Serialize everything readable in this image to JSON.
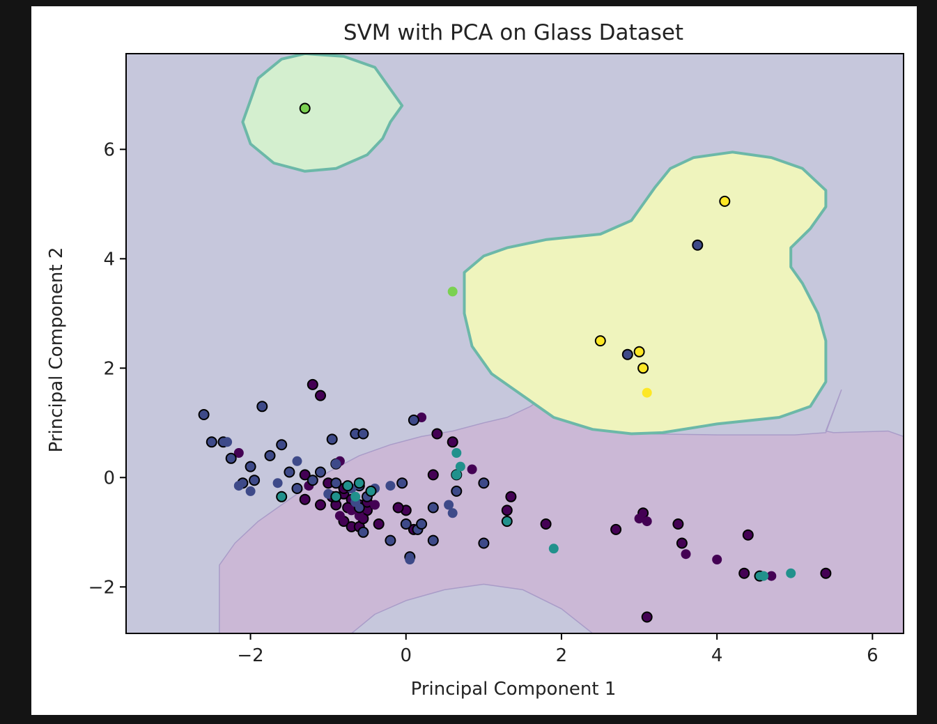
{
  "chart_data": {
    "type": "scatter",
    "title": "SVM with PCA on Glass Dataset",
    "xlabel": "Principal Component 1",
    "ylabel": "Principal Component 2",
    "xlim": [
      -3.6,
      6.4
    ],
    "ylim": [
      -2.85,
      7.75
    ],
    "xticks": [
      -2,
      0,
      2,
      4,
      6
    ],
    "yticks": [
      -2,
      0,
      2,
      4,
      6
    ],
    "grid": false,
    "legend": "none",
    "colors": {
      "class_1": "#440154",
      "class_2": "#3b528b",
      "class_3": "#3e4a89",
      "class_5": "#21918c",
      "class_6": "#7ad151",
      "class_7": "#fde725",
      "region_default": "#c6c7dc",
      "region_purple": "#cbb8d6",
      "region_green": "#d4efcf",
      "region_yellow": "#eff4bd",
      "region_edge": "#6cb8a8"
    },
    "decision_regions": [
      {
        "class": "class_2",
        "description": "background"
      },
      {
        "class": "class_1",
        "points": [
          [
            -2.4,
            -2.85
          ],
          [
            -2.4,
            -1.6
          ],
          [
            -2.2,
            -1.2
          ],
          [
            -1.9,
            -0.8
          ],
          [
            -1.6,
            -0.5
          ],
          [
            -1.3,
            -0.2
          ],
          [
            -1.0,
            0.1
          ],
          [
            -0.6,
            0.4
          ],
          [
            -0.2,
            0.6
          ],
          [
            0.2,
            0.75
          ],
          [
            0.6,
            0.85
          ],
          [
            1.0,
            1.0
          ],
          [
            1.3,
            1.1
          ],
          [
            1.6,
            1.3
          ],
          [
            1.8,
            1.5
          ],
          [
            2.0,
            1.6
          ],
          [
            2.1,
            1.5
          ],
          [
            2.0,
            1.3
          ],
          [
            1.9,
            1.1
          ],
          [
            2.2,
            0.95
          ],
          [
            3.0,
            0.8
          ],
          [
            4.0,
            0.78
          ],
          [
            5.0,
            0.78
          ],
          [
            5.4,
            0.82
          ],
          [
            5.6,
            1.6
          ],
          [
            5.4,
            0.85
          ],
          [
            5.5,
            0.82
          ],
          [
            6.2,
            0.85
          ],
          [
            6.4,
            0.75
          ],
          [
            6.4,
            -2.85
          ],
          [
            2.4,
            -2.85
          ],
          [
            2.0,
            -2.4
          ],
          [
            1.5,
            -2.05
          ],
          [
            1.0,
            -1.95
          ],
          [
            0.5,
            -2.05
          ],
          [
            0.0,
            -2.25
          ],
          [
            -0.4,
            -2.5
          ],
          [
            -0.7,
            -2.85
          ]
        ]
      },
      {
        "class": "class_6",
        "points": [
          [
            -2.0,
            6.9
          ],
          [
            -1.9,
            7.3
          ],
          [
            -1.6,
            7.65
          ],
          [
            -1.3,
            7.75
          ],
          [
            -0.8,
            7.7
          ],
          [
            -0.4,
            7.5
          ],
          [
            -0.2,
            7.1
          ],
          [
            -0.05,
            6.8
          ],
          [
            -0.2,
            6.5
          ],
          [
            -0.3,
            6.2
          ],
          [
            -0.5,
            5.9
          ],
          [
            -0.9,
            5.65
          ],
          [
            -1.3,
            5.6
          ],
          [
            -1.7,
            5.75
          ],
          [
            -2.0,
            6.1
          ],
          [
            -2.1,
            6.5
          ]
        ]
      },
      {
        "class": "class_7",
        "points": [
          [
            0.75,
            3.75
          ],
          [
            1.0,
            4.05
          ],
          [
            1.3,
            4.2
          ],
          [
            1.8,
            4.35
          ],
          [
            2.5,
            4.45
          ],
          [
            2.9,
            4.7
          ],
          [
            3.2,
            5.3
          ],
          [
            3.4,
            5.65
          ],
          [
            3.7,
            5.85
          ],
          [
            4.2,
            5.95
          ],
          [
            4.7,
            5.85
          ],
          [
            5.1,
            5.65
          ],
          [
            5.4,
            5.25
          ],
          [
            5.4,
            4.95
          ],
          [
            5.2,
            4.55
          ],
          [
            4.95,
            4.2
          ],
          [
            4.95,
            3.85
          ],
          [
            5.1,
            3.55
          ],
          [
            5.3,
            3.0
          ],
          [
            5.4,
            2.5
          ],
          [
            5.4,
            1.75
          ],
          [
            5.2,
            1.3
          ],
          [
            4.8,
            1.1
          ],
          [
            4.0,
            0.98
          ],
          [
            3.3,
            0.82
          ],
          [
            2.9,
            0.8
          ],
          [
            2.4,
            0.88
          ],
          [
            1.9,
            1.1
          ],
          [
            1.5,
            1.5
          ],
          [
            1.1,
            1.9
          ],
          [
            0.85,
            2.4
          ],
          [
            0.75,
            3.0
          ]
        ]
      }
    ],
    "series": [
      {
        "color": "class_1",
        "edge": true,
        "points": [
          [
            -1.2,
            1.7
          ],
          [
            -1.1,
            1.5
          ],
          [
            -0.9,
            0.25
          ],
          [
            0.4,
            0.8
          ],
          [
            0.6,
            0.65
          ],
          [
            -1.3,
            0.05
          ],
          [
            -1.0,
            -0.1
          ],
          [
            -0.8,
            -0.3
          ],
          [
            -0.7,
            -0.4
          ],
          [
            -0.6,
            -0.5
          ],
          [
            -0.5,
            -0.6
          ],
          [
            -0.9,
            -0.5
          ],
          [
            -0.8,
            -0.8
          ],
          [
            -0.7,
            -0.9
          ],
          [
            -0.6,
            -0.9
          ],
          [
            -0.35,
            -0.85
          ],
          [
            0.0,
            -0.6
          ],
          [
            -0.5,
            -0.45
          ],
          [
            -1.3,
            -0.4
          ],
          [
            -1.1,
            -0.5
          ],
          [
            -0.75,
            -0.55
          ],
          [
            -0.55,
            -0.75
          ],
          [
            1.3,
            -0.6
          ],
          [
            1.8,
            -0.85
          ],
          [
            2.7,
            -0.95
          ],
          [
            3.05,
            -0.65
          ],
          [
            3.5,
            -0.85
          ],
          [
            3.55,
            -1.2
          ],
          [
            4.4,
            -1.05
          ],
          [
            4.35,
            -1.75
          ],
          [
            5.4,
            -1.75
          ],
          [
            3.1,
            -2.55
          ],
          [
            -0.8,
            -0.2
          ],
          [
            -0.95,
            -0.35
          ],
          [
            -0.1,
            -0.55
          ],
          [
            0.1,
            -0.95
          ],
          [
            0.35,
            0.05
          ],
          [
            1.35,
            -0.35
          ]
        ]
      },
      {
        "color": "class_1",
        "edge": false,
        "points": [
          [
            0.2,
            1.1
          ],
          [
            -0.85,
            0.3
          ],
          [
            -0.7,
            -0.6
          ],
          [
            -0.6,
            -0.7
          ],
          [
            -0.85,
            -0.7
          ],
          [
            -0.4,
            -0.5
          ],
          [
            -1.25,
            -0.15
          ],
          [
            0.85,
            0.15
          ],
          [
            3.0,
            -0.75
          ],
          [
            3.1,
            -0.8
          ],
          [
            3.6,
            -1.4
          ],
          [
            4.0,
            -1.5
          ],
          [
            4.7,
            -1.8
          ],
          [
            -2.15,
            0.45
          ]
        ]
      },
      {
        "color": "class_3",
        "edge": true,
        "points": [
          [
            -2.6,
            1.15
          ],
          [
            -2.5,
            0.65
          ],
          [
            -2.35,
            0.65
          ],
          [
            -2.25,
            0.35
          ],
          [
            -2.1,
            -0.1
          ],
          [
            -2.0,
            0.2
          ],
          [
            -1.95,
            -0.05
          ],
          [
            -1.85,
            1.3
          ],
          [
            -1.75,
            0.4
          ],
          [
            -1.6,
            0.6
          ],
          [
            -1.5,
            0.1
          ],
          [
            -1.4,
            -0.2
          ],
          [
            -1.2,
            -0.05
          ],
          [
            -1.1,
            0.1
          ],
          [
            -0.95,
            0.7
          ],
          [
            -0.65,
            0.8
          ],
          [
            -0.55,
            0.8
          ],
          [
            -0.9,
            -0.1
          ],
          [
            -0.6,
            -0.15
          ],
          [
            -0.5,
            -0.35
          ],
          [
            -0.6,
            -0.55
          ],
          [
            -0.55,
            -1.0
          ],
          [
            -0.2,
            -1.15
          ],
          [
            0.0,
            -0.85
          ],
          [
            0.05,
            -1.45
          ],
          [
            0.15,
            -0.95
          ],
          [
            0.2,
            -0.85
          ],
          [
            0.35,
            -1.15
          ],
          [
            0.35,
            -0.55
          ],
          [
            0.65,
            -0.25
          ],
          [
            0.65,
            0.05
          ],
          [
            1.0,
            -0.1
          ],
          [
            1.0,
            -1.2
          ],
          [
            0.1,
            1.05
          ],
          [
            -0.05,
            -0.1
          ],
          [
            2.85,
            2.25
          ],
          [
            3.75,
            4.25
          ]
        ]
      },
      {
        "color": "class_3",
        "edge": false,
        "points": [
          [
            -2.3,
            0.65
          ],
          [
            -2.15,
            -0.15
          ],
          [
            -2.0,
            -0.25
          ],
          [
            -1.65,
            -0.1
          ],
          [
            -1.4,
            0.3
          ],
          [
            -1.0,
            -0.3
          ],
          [
            -0.9,
            0.25
          ],
          [
            -0.7,
            -0.2
          ],
          [
            -0.65,
            -0.45
          ],
          [
            -0.4,
            -0.2
          ],
          [
            -0.2,
            -0.15
          ],
          [
            0.05,
            -1.5
          ],
          [
            0.55,
            -0.5
          ],
          [
            0.6,
            -0.65
          ]
        ]
      },
      {
        "color": "class_5",
        "edge": true,
        "points": [
          [
            -1.6,
            -0.35
          ],
          [
            -0.75,
            -0.15
          ],
          [
            -0.6,
            -0.1
          ],
          [
            -0.45,
            -0.25
          ],
          [
            1.3,
            -0.8
          ],
          [
            4.55,
            -1.8
          ],
          [
            -0.9,
            -0.35
          ]
        ]
      },
      {
        "color": "class_5",
        "edge": false,
        "points": [
          [
            0.65,
            0.45
          ],
          [
            0.7,
            0.2
          ],
          [
            0.65,
            0.05
          ],
          [
            1.9,
            -1.3
          ],
          [
            4.95,
            -1.75
          ],
          [
            4.6,
            -1.8
          ],
          [
            -0.65,
            -0.35
          ]
        ]
      },
      {
        "color": "class_6",
        "edge": true,
        "points": [
          [
            -1.3,
            6.75
          ]
        ]
      },
      {
        "color": "class_6",
        "edge": false,
        "points": [
          [
            0.6,
            3.4
          ]
        ]
      },
      {
        "color": "class_7",
        "edge": true,
        "points": [
          [
            4.1,
            5.05
          ],
          [
            2.5,
            2.5
          ],
          [
            3.0,
            2.3
          ],
          [
            3.05,
            2.0
          ]
        ]
      },
      {
        "color": "class_7",
        "edge": false,
        "points": [
          [
            3.1,
            1.55
          ]
        ]
      }
    ]
  }
}
